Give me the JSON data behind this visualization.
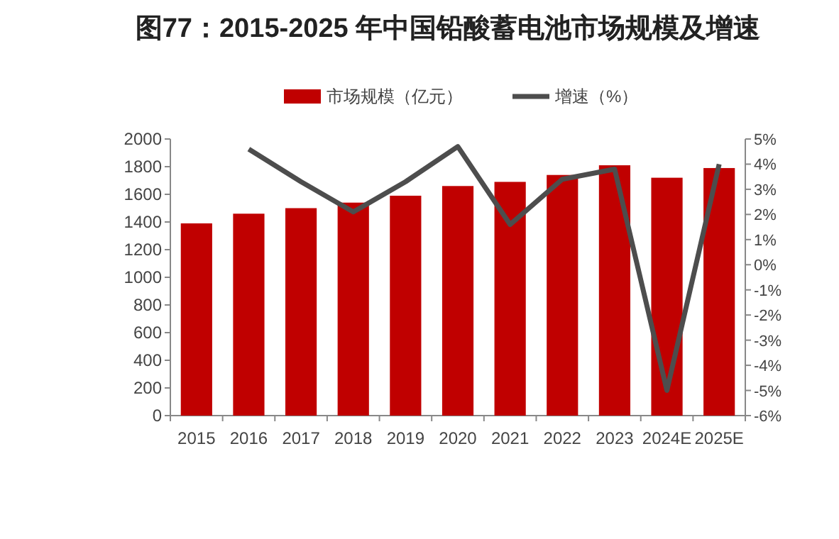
{
  "chart_data": {
    "type": "bar",
    "title": "图77：2015-2025 年中国铅酸蓄电池市场规模及增速",
    "categories": [
      "2015",
      "2016",
      "2017",
      "2018",
      "2019",
      "2020",
      "2021",
      "2022",
      "2023",
      "2024E",
      "2025E"
    ],
    "series": [
      {
        "name": "市场规模（亿元）",
        "color": "#c00000",
        "values": [
          1390,
          1460,
          1500,
          1540,
          1590,
          1660,
          1690,
          1740,
          1810,
          1720,
          1790
        ]
      },
      {
        "name": "增速（%）",
        "type": "line",
        "axis": "y2",
        "color": "#4d4d4d",
        "values": [
          null,
          4.6,
          3.3,
          2.1,
          3.3,
          4.7,
          1.6,
          3.4,
          3.8,
          -5.0,
          4.0
        ]
      }
    ],
    "ylim": [
      0,
      2000
    ],
    "yticks": [
      0,
      200,
      400,
      600,
      800,
      1000,
      1200,
      1400,
      1600,
      1800,
      2000
    ],
    "y2lim": [
      -6,
      5
    ],
    "y2ticks": [
      {
        "value": -6,
        "label": "-6%"
      },
      {
        "value": -5,
        "label": "-5%"
      },
      {
        "value": -4,
        "label": "-4%"
      },
      {
        "value": -3,
        "label": "-3%"
      },
      {
        "value": -2,
        "label": "-2%"
      },
      {
        "value": -1,
        "label": "-1%"
      },
      {
        "value": 0,
        "label": "0%"
      },
      {
        "value": 1,
        "label": "1%"
      },
      {
        "value": 2,
        "label": "2%"
      },
      {
        "value": 3,
        "label": "3%"
      },
      {
        "value": 4,
        "label": "4%"
      },
      {
        "value": 5,
        "label": "5%"
      }
    ],
    "grid": false,
    "legend": "top",
    "marker": "none",
    "line_style": "solid"
  }
}
